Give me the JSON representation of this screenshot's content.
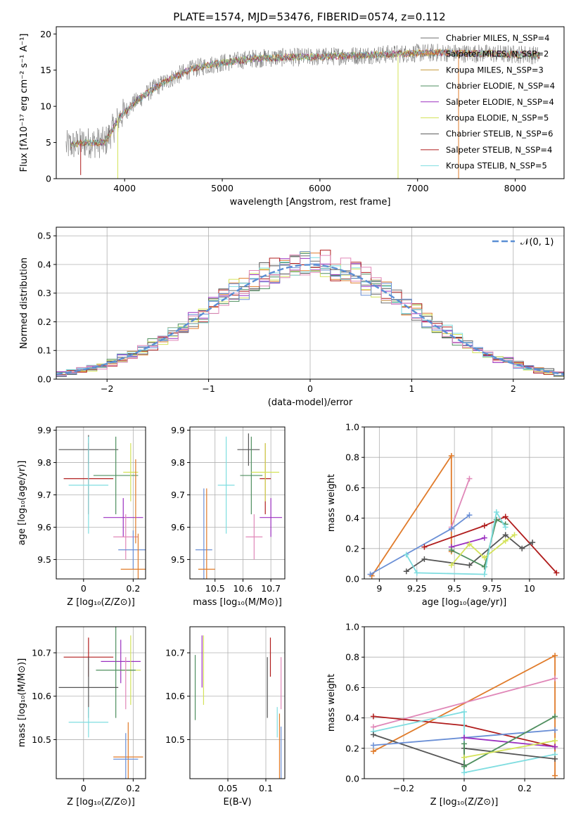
{
  "figure_title": "PLATE=1574, MJD=53476, FIBERID=0574, z=0.112",
  "colors": [
    "#6f6f6f",
    "#e07b2a",
    "#c59a3a",
    "#4f8f5f",
    "#9b30c0",
    "#d4e35a",
    "#555555",
    "#b01c1c",
    "#7fdde0",
    "#6a8fd6",
    "#e087b8"
  ],
  "chart_data": [
    {
      "id": "spectrum",
      "type": "line",
      "title": "PLATE=1574, MJD=53476, FIBERID=0574, z=0.112",
      "xlabel": "wavelength [Angstrom, rest frame]",
      "ylabel": "Flux [fλ10⁻¹⁷ erg cm⁻² s⁻¹ A⁻¹]",
      "xlim": [
        3300,
        8500
      ],
      "ylim": [
        0,
        21
      ],
      "xticks": [
        4000,
        5000,
        6000,
        7000,
        8000
      ],
      "yticks": [
        0,
        5,
        10,
        15,
        20
      ],
      "grid": false,
      "legend_position": "top-right",
      "series": [
        {
          "name": "Chabrier MILES, N_SSP=4",
          "color": "#6f6f6f"
        },
        {
          "name": "Salpeter MILES, N_SSP=2",
          "color": "#e07b2a"
        },
        {
          "name": "Kroupa MILES, N_SSP=3",
          "color": "#c59a3a"
        },
        {
          "name": "Chabrier ELODIE, N_SSP=4",
          "color": "#4f8f5f"
        },
        {
          "name": "Salpeter ELODIE, N_SSP=4",
          "color": "#9b30c0"
        },
        {
          "name": "Kroupa ELODIE, N_SSP=5",
          "color": "#d4e35a"
        },
        {
          "name": "Chabrier STELIB, N_SSP=6",
          "color": "#555555"
        },
        {
          "name": "Salpeter STELIB, N_SSP=4",
          "color": "#b01c1c"
        },
        {
          "name": "Kroupa STELIB, N_SSP=5",
          "color": "#7fdde0"
        }
      ],
      "continuum": {
        "x": [
          3400,
          3600,
          3800,
          3950,
          4100,
          4300,
          4500,
          4700,
          4900,
          5100,
          5300,
          5500,
          5700,
          5900,
          6100,
          6300,
          6500,
          6700,
          6900,
          7100,
          7300,
          7500,
          7700,
          7900,
          8100,
          8250
        ],
        "y": [
          4.5,
          5.0,
          5.0,
          8.5,
          10.5,
          12.5,
          14.0,
          15.2,
          15.8,
          16.2,
          16.6,
          16.7,
          16.8,
          16.8,
          16.9,
          17.0,
          17.1,
          17.2,
          17.3,
          17.4,
          17.4,
          17.3,
          17.3,
          17.2,
          17.2,
          17.0
        ]
      },
      "drops": [
        {
          "x": 3550,
          "y": 0.5,
          "color": "#b01c1c"
        },
        {
          "x": 3930,
          "y": 0,
          "color": "#d4e35a"
        },
        {
          "x": 6800,
          "y": 0,
          "color": "#d4e35a"
        },
        {
          "x": 7420,
          "y": 0,
          "color": "#e07b2a"
        }
      ]
    },
    {
      "id": "residuals",
      "type": "bar",
      "xlabel": "(data-model)/error",
      "ylabel": "Normed distribution",
      "xlim": [
        -2.5,
        2.5
      ],
      "ylim": [
        0,
        0.53
      ],
      "xticks": [
        -2,
        -1,
        0,
        1,
        2
      ],
      "yticks": [
        0.0,
        0.1,
        0.2,
        0.3,
        0.4,
        0.5
      ],
      "grid": true,
      "legend_position": "top-right",
      "series": [
        {
          "name": "𝒩(0, 1)",
          "style": "dashed",
          "color": "#5b8fd4",
          "mean": 0,
          "sigma": 1
        }
      ],
      "histogram": {
        "bin_width": 0.1,
        "colors": [
          "#6f6f6f",
          "#e07b2a",
          "#4f8f5f",
          "#9b30c0",
          "#d4e35a",
          "#555555",
          "#b01c1c",
          "#7fdde0",
          "#6a8fd6",
          "#e087b8"
        ]
      }
    },
    {
      "id": "z-age",
      "type": "scatter",
      "xlabel": "Z [log₁₀(Z/Z⊙)]",
      "ylabel": "age  [log₁₀(age/yr)]",
      "xlim": [
        -0.11,
        0.25
      ],
      "ylim": [
        9.44,
        9.91
      ],
      "xticks": [
        0.0,
        0.2
      ],
      "yticks": [
        9.5,
        9.6,
        9.7,
        9.8,
        9.9
      ],
      "grid": true,
      "points": [
        {
          "x": 0.02,
          "y": 9.84,
          "xerr": 0.12,
          "yerr": 0.045,
          "color": "#555555"
        },
        {
          "x": 0.02,
          "y": 9.75,
          "xerr": 0.1,
          "yerr": 0.11,
          "color": "#b01c1c"
        },
        {
          "x": 0.02,
          "y": 9.73,
          "xerr": 0.08,
          "yerr": 0.15,
          "color": "#7fdde0"
        },
        {
          "x": 0.13,
          "y": 9.76,
          "xerr": 0.09,
          "yerr": 0.12,
          "color": "#4f8f5f"
        },
        {
          "x": 0.19,
          "y": 9.77,
          "xerr": 0.03,
          "yerr": 0.09,
          "color": "#d4e35a"
        },
        {
          "x": 0.16,
          "y": 9.63,
          "xerr": 0.08,
          "yerr": 0.06,
          "color": "#9b30c0"
        },
        {
          "x": 0.17,
          "y": 9.57,
          "xerr": 0.05,
          "yerr": 0.07,
          "color": "#e087b8"
        },
        {
          "x": 0.2,
          "y": 9.53,
          "xerr": 0.06,
          "yerr": 0.06,
          "color": "#6a8fd6"
        },
        {
          "x": 0.22,
          "y": 9.47,
          "xerr": 0.07,
          "yerr": 0.11,
          "color": "#e07b2a"
        },
        {
          "x": 0.21,
          "y": 9.68,
          "xerr": 0.0,
          "yerr": 0.13,
          "color": "#e07b2a"
        }
      ]
    },
    {
      "id": "mass-age",
      "type": "scatter",
      "xlabel": "mass [log₁₀(M/M⊙)]",
      "ylabel": "",
      "xlim": [
        10.41,
        10.75
      ],
      "ylim": [
        9.44,
        9.91
      ],
      "xticks": [
        10.5,
        10.6,
        10.7
      ],
      "yticks": [
        9.5,
        9.6,
        9.7,
        9.8,
        9.9
      ],
      "grid": true,
      "points": [
        {
          "x": 10.62,
          "y": 9.84,
          "xerr": 0.04,
          "yerr": 0.05,
          "color": "#555555"
        },
        {
          "x": 10.68,
          "y": 9.75,
          "xerr": 0.02,
          "yerr": 0.11,
          "color": "#b01c1c"
        },
        {
          "x": 10.54,
          "y": 9.73,
          "xerr": 0.03,
          "yerr": 0.15,
          "color": "#7fdde0"
        },
        {
          "x": 10.63,
          "y": 9.76,
          "xerr": 0.04,
          "yerr": 0.12,
          "color": "#4f8f5f"
        },
        {
          "x": 10.68,
          "y": 9.77,
          "xerr": 0.05,
          "yerr": 0.09,
          "color": "#d4e35a"
        },
        {
          "x": 10.7,
          "y": 9.63,
          "xerr": 0.04,
          "yerr": 0.06,
          "color": "#9b30c0"
        },
        {
          "x": 10.64,
          "y": 9.57,
          "xerr": 0.03,
          "yerr": 0.07,
          "color": "#e087b8"
        },
        {
          "x": 10.46,
          "y": 9.53,
          "xerr": 0.03,
          "yerr": 0.19,
          "color": "#6a8fd6"
        },
        {
          "x": 10.47,
          "y": 9.47,
          "xerr": 0.03,
          "yerr": 0.25,
          "color": "#e07b2a"
        }
      ]
    },
    {
      "id": "age-weight",
      "type": "line",
      "xlabel": "age  [log₁₀(age/yr)]",
      "ylabel": "mass weight",
      "xlim": [
        8.9,
        10.23
      ],
      "ylim": [
        0,
        1.0
      ],
      "xticks": [
        9.0,
        9.25,
        9.5,
        9.75,
        10.0
      ],
      "yticks": [
        0.0,
        0.2,
        0.4,
        0.6,
        0.8,
        1.0
      ],
      "grid": true,
      "series": [
        {
          "color": "#e07b2a",
          "x": [
            8.95,
            9.48,
            9.48
          ],
          "y": [
            0.02,
            0.81,
            0.18
          ]
        },
        {
          "color": "#e087b8",
          "x": [
            9.48,
            9.6
          ],
          "y": [
            0.34,
            0.66
          ]
        },
        {
          "color": "#6a8fd6",
          "x": [
            8.94,
            9.48,
            9.6
          ],
          "y": [
            0.03,
            0.33,
            0.42
          ]
        },
        {
          "color": "#b01c1c",
          "x": [
            9.3,
            9.7,
            9.84,
            10.18
          ],
          "y": [
            0.21,
            0.35,
            0.41,
            0.04
          ]
        },
        {
          "color": "#9b30c0",
          "x": [
            9.48,
            9.7
          ],
          "y": [
            0.21,
            0.27
          ]
        },
        {
          "color": "#555555",
          "x": [
            9.18,
            9.3,
            9.6,
            9.84,
            9.95,
            10.02
          ],
          "y": [
            0.05,
            0.13,
            0.09,
            0.29,
            0.2,
            0.24
          ]
        },
        {
          "color": "#4f8f5f",
          "x": [
            9.48,
            9.7,
            9.78,
            9.84
          ],
          "y": [
            0.19,
            0.08,
            0.39,
            0.36
          ]
        },
        {
          "color": "#d4e35a",
          "x": [
            9.48,
            9.6,
            9.7,
            9.84,
            9.9
          ],
          "y": [
            0.09,
            0.23,
            0.14,
            0.25,
            0.29
          ]
        },
        {
          "color": "#7fdde0",
          "x": [
            9.18,
            9.25,
            9.7,
            9.78,
            9.84
          ],
          "y": [
            0.16,
            0.04,
            0.03,
            0.44,
            0.34
          ]
        }
      ]
    },
    {
      "id": "z-mass",
      "type": "scatter",
      "xlabel": "Z [log₁₀(Z/Z⊙)]",
      "ylabel": "mass [log₁₀(M/M⊙)]",
      "xlim": [
        -0.11,
        0.25
      ],
      "ylim": [
        10.41,
        10.76
      ],
      "xticks": [
        0.0,
        0.2
      ],
      "yticks": [
        10.5,
        10.6,
        10.7
      ],
      "grid": true,
      "points": [
        {
          "x": 0.02,
          "y": 10.69,
          "xerr": 0.1,
          "yerr": 0.045,
          "color": "#b01c1c"
        },
        {
          "x": 0.15,
          "y": 10.68,
          "xerr": 0.08,
          "yerr": 0.05,
          "color": "#9b30c0"
        },
        {
          "x": 0.19,
          "y": 10.66,
          "xerr": 0.04,
          "yerr": 0.08,
          "color": "#d4e35a"
        },
        {
          "x": 0.13,
          "y": 10.66,
          "xerr": 0.08,
          "yerr": 0.11,
          "color": "#4f8f5f"
        },
        {
          "x": 0.02,
          "y": 10.62,
          "xerr": 0.12,
          "yerr": 0.07,
          "color": "#555555"
        },
        {
          "x": 0.17,
          "y": 10.63,
          "xerr": 0.0,
          "yerr": 0.06,
          "color": "#e087b8"
        },
        {
          "x": 0.02,
          "y": 10.54,
          "xerr": 0.08,
          "yerr": 0.035,
          "color": "#7fdde0"
        },
        {
          "x": 0.18,
          "y": 10.46,
          "xerr": 0.06,
          "yerr": 0.08,
          "color": "#e07b2a"
        },
        {
          "x": 0.17,
          "y": 10.455,
          "xerr": 0.05,
          "yerr": 0.06,
          "color": "#6a8fd6"
        }
      ]
    },
    {
      "id": "ebv-mass",
      "type": "scatter",
      "xlabel": "E(B-V)",
      "ylabel": "",
      "xlim": [
        0.0,
        0.125
      ],
      "ylim": [
        10.41,
        10.76
      ],
      "xticks": [
        0.05,
        0.1
      ],
      "yticks": [
        10.5,
        10.6,
        10.7
      ],
      "grid": true,
      "points": [
        {
          "x": 0.016,
          "y": 10.68,
          "yerr": 0.06,
          "color": "#9b30c0"
        },
        {
          "x": 0.018,
          "y": 10.66,
          "yerr": 0.08,
          "color": "#d4e35a"
        },
        {
          "x": 0.007,
          "y": 10.62,
          "yerr": 0.075,
          "color": "#4f8f5f"
        },
        {
          "x": 0.106,
          "y": 10.69,
          "yerr": 0.045,
          "color": "#b01c1c"
        },
        {
          "x": 0.102,
          "y": 10.62,
          "yerr": 0.07,
          "color": "#555555"
        },
        {
          "x": 0.12,
          "y": 10.63,
          "yerr": 0.06,
          "color": "#e087b8"
        },
        {
          "x": 0.115,
          "y": 10.54,
          "yerr": 0.035,
          "color": "#7fdde0"
        },
        {
          "x": 0.118,
          "y": 10.48,
          "yerr": 0.08,
          "color": "#e07b2a"
        },
        {
          "x": 0.12,
          "y": 10.47,
          "yerr": 0.06,
          "color": "#6a8fd6"
        }
      ]
    },
    {
      "id": "z-weight",
      "type": "line",
      "xlabel": "Z [log₁₀(Z/Z⊙)]",
      "ylabel": "mass weight",
      "xlim": [
        -0.33,
        0.33
      ],
      "ylim": [
        0,
        1.0
      ],
      "xticks": [
        -0.2,
        0.0,
        0.2
      ],
      "yticks": [
        0.0,
        0.2,
        0.4,
        0.6,
        0.8,
        1.0
      ],
      "grid": true,
      "series": [
        {
          "color": "#e07b2a",
          "x": [
            -0.3,
            0.3,
            0.3
          ],
          "y": [
            0.18,
            0.81,
            0.02
          ]
        },
        {
          "color": "#e087b8",
          "x": [
            -0.3,
            0.3
          ],
          "y": [
            0.34,
            0.66
          ]
        },
        {
          "color": "#b01c1c",
          "x": [
            -0.3,
            0.0,
            0.3
          ],
          "y": [
            0.41,
            0.35,
            0.21
          ]
        },
        {
          "color": "#7fdde0",
          "x": [
            -0.3,
            0.0,
            0.0,
            0.3
          ],
          "y": [
            0.31,
            0.44,
            0.04,
            0.16
          ]
        },
        {
          "color": "#555555",
          "x": [
            -0.3,
            0.0,
            0.0,
            0.3
          ],
          "y": [
            0.29,
            0.09,
            0.2,
            0.13
          ]
        },
        {
          "color": "#6a8fd6",
          "x": [
            -0.3,
            0.0,
            0.3
          ],
          "y": [
            0.22,
            0.27,
            0.32
          ]
        },
        {
          "color": "#9b30c0",
          "x": [
            0.0,
            0.3
          ],
          "y": [
            0.27,
            0.21
          ]
        },
        {
          "color": "#4f8f5f",
          "x": [
            0.0,
            0.0,
            0.3
          ],
          "y": [
            0.23,
            0.08,
            0.41
          ]
        },
        {
          "color": "#d4e35a",
          "x": [
            0.0,
            0.3
          ],
          "y": [
            0.14,
            0.25
          ]
        }
      ]
    }
  ]
}
